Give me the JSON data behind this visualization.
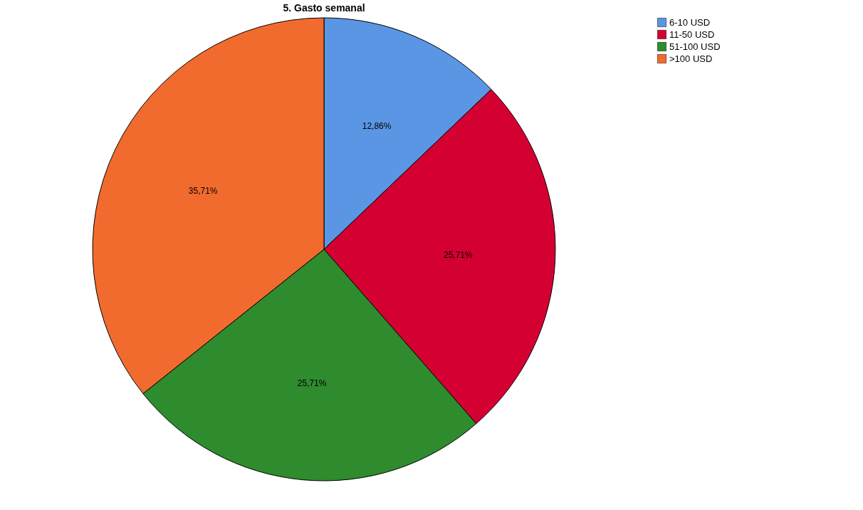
{
  "chart_data": {
    "type": "pie",
    "title": "5. Gasto semanal",
    "categories": [
      "6-10 USD",
      "11-50 USD",
      "51-100 USD",
      ">100 USD"
    ],
    "values": [
      12.86,
      25.71,
      25.71,
      35.71
    ],
    "colors": [
      "#5a96e3",
      "#d50032",
      "#2e8b2e",
      "#f26b2e"
    ],
    "value_labels": [
      "12,86%",
      "25,71%",
      "25,71%",
      "35,71%"
    ],
    "legend": "top right"
  }
}
